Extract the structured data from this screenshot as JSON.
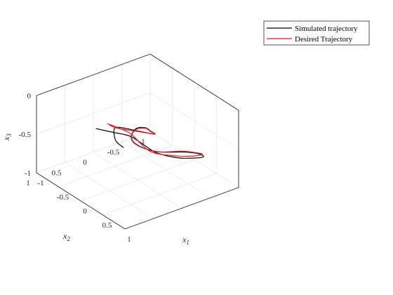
{
  "chart_data": {
    "type": "line",
    "projection": "3d",
    "xlabel": "x",
    "xlabel_sub": "1",
    "ylabel": "x",
    "ylabel_sub": "2",
    "zlabel": "x",
    "zlabel_sub": "3",
    "xlim": [
      -1,
      1
    ],
    "ylim": [
      -1,
      1
    ],
    "zlim": [
      -1,
      0
    ],
    "x_ticks": [
      "-1",
      "-0.5",
      "0",
      "0.5",
      "1"
    ],
    "y_ticks": [
      "-1",
      "-0.5",
      "0",
      "0.5",
      "1"
    ],
    "z_ticks": [
      "-1",
      "-0.5",
      "0"
    ],
    "grid": true,
    "legend_position": "top-right",
    "series": [
      {
        "name": "Simulated trajectory",
        "color": "#000000",
        "points": [
          [
            0.15,
            0.85,
            -0.05
          ],
          [
            0.03,
            0.45,
            -0.25
          ],
          [
            -0.05,
            0.1,
            -0.42
          ],
          [
            -0.1,
            -0.15,
            -0.6
          ],
          [
            -0.15,
            -0.45,
            -0.82
          ],
          [
            -0.05,
            -0.75,
            -0.93
          ],
          [
            0.15,
            -0.9,
            -0.9
          ],
          [
            0.4,
            -0.85,
            -0.78
          ],
          [
            0.6,
            -0.6,
            -0.6
          ],
          [
            0.65,
            -0.3,
            -0.48
          ],
          [
            0.55,
            0.05,
            -0.42
          ],
          [
            0.3,
            0.2,
            -0.4
          ],
          [
            0.05,
            0.15,
            -0.4
          ],
          [
            -0.3,
            -0.2,
            -0.5
          ],
          [
            -0.6,
            -0.6,
            -0.7
          ],
          [
            -0.85,
            -0.9,
            -0.92
          ],
          [
            -0.9,
            -1.0,
            -1.0
          ],
          [
            -0.6,
            -0.5,
            -0.72
          ],
          [
            -0.2,
            0.15,
            -0.35
          ],
          [
            0.05,
            0.45,
            -0.2
          ],
          [
            0.15,
            0.5,
            -0.3
          ],
          [
            0.2,
            0.4,
            -0.4
          ]
        ]
      },
      {
        "name": "Desired Trajectory",
        "color": "#e31a1c",
        "points": [
          [
            -0.05,
            0.5,
            -0.15
          ],
          [
            -0.12,
            0.05,
            -0.42
          ],
          [
            -0.17,
            -0.35,
            -0.78
          ],
          [
            -0.08,
            -0.7,
            -0.9
          ],
          [
            0.12,
            -0.88,
            -0.88
          ],
          [
            0.37,
            -0.85,
            -0.76
          ],
          [
            0.57,
            -0.6,
            -0.6
          ],
          [
            0.62,
            -0.3,
            -0.48
          ],
          [
            0.52,
            0.05,
            -0.43
          ],
          [
            0.28,
            0.18,
            -0.41
          ],
          [
            0.03,
            0.13,
            -0.41
          ],
          [
            -0.32,
            -0.22,
            -0.52
          ],
          [
            -0.62,
            -0.62,
            -0.72
          ],
          [
            -0.87,
            -0.92,
            -0.94
          ],
          [
            -0.9,
            -1.0,
            -1.0
          ],
          [
            -0.62,
            -0.5,
            -0.73
          ],
          [
            -0.22,
            0.18,
            -0.36
          ],
          [
            0.0,
            0.5,
            -0.15
          ]
        ]
      }
    ]
  }
}
